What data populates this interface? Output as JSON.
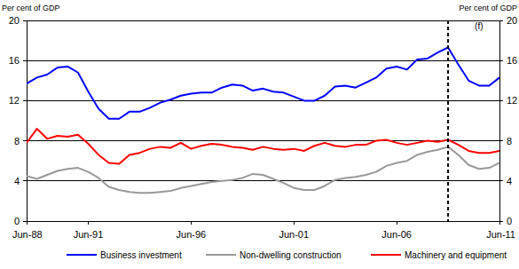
{
  "chart_data": {
    "type": "line",
    "y_label": "Per cent of GDP",
    "y2_label": "Per cent of GDP",
    "x": [
      1988.5,
      1989.0,
      1989.5,
      1990.0,
      1990.5,
      1991.0,
      1991.5,
      1992.0,
      1992.5,
      1993.0,
      1993.5,
      1994.0,
      1994.5,
      1995.0,
      1995.5,
      1996.0,
      1996.5,
      1997.0,
      1997.5,
      1998.0,
      1998.5,
      1999.0,
      1999.5,
      2000.0,
      2000.5,
      2001.0,
      2001.5,
      2002.0,
      2002.5,
      2003.0,
      2003.5,
      2004.0,
      2004.5,
      2005.0,
      2005.5,
      2006.0,
      2006.5,
      2007.0,
      2007.5,
      2008.0,
      2008.5,
      2009.0,
      2009.5,
      2010.0,
      2010.5,
      2011.0,
      2011.5
    ],
    "series": [
      {
        "name": "Business investment",
        "color": "#0000ff",
        "values": [
          13.7,
          14.3,
          14.6,
          15.3,
          15.4,
          14.8,
          12.9,
          11.2,
          10.2,
          10.2,
          10.9,
          10.9,
          11.3,
          11.8,
          12.1,
          12.5,
          12.7,
          12.8,
          12.8,
          13.3,
          13.6,
          13.5,
          13.0,
          13.2,
          12.9,
          12.8,
          12.4,
          12.0,
          12.0,
          12.5,
          13.4,
          13.5,
          13.3,
          13.8,
          14.3,
          15.2,
          15.4,
          15.1,
          16.1,
          16.2,
          16.8,
          17.3,
          15.6,
          14.0,
          13.5,
          13.5,
          14.3
        ]
      },
      {
        "name": "Non-dwelling construction",
        "color": "#999999",
        "values": [
          4.5,
          4.2,
          4.6,
          5.0,
          5.2,
          5.3,
          4.9,
          4.3,
          3.4,
          3.1,
          2.9,
          2.8,
          2.8,
          2.9,
          3.0,
          3.3,
          3.5,
          3.7,
          3.9,
          4.0,
          4.1,
          4.3,
          4.7,
          4.6,
          4.2,
          3.8,
          3.3,
          3.1,
          3.1,
          3.5,
          4.1,
          4.3,
          4.4,
          4.6,
          4.9,
          5.5,
          5.8,
          6.0,
          6.6,
          6.9,
          7.1,
          7.4,
          6.6,
          5.6,
          5.2,
          5.3,
          5.8
        ]
      },
      {
        "name": "Machinery and equipment",
        "color": "#ff0000",
        "values": [
          7.8,
          9.2,
          8.2,
          8.5,
          8.4,
          8.6,
          7.7,
          6.6,
          5.8,
          5.7,
          6.6,
          6.8,
          7.2,
          7.4,
          7.3,
          7.8,
          7.2,
          7.5,
          7.7,
          7.6,
          7.4,
          7.3,
          7.1,
          7.4,
          7.2,
          7.1,
          7.2,
          7.0,
          7.5,
          7.8,
          7.5,
          7.4,
          7.6,
          7.6,
          8.0,
          8.1,
          7.8,
          7.6,
          7.8,
          8.0,
          7.9,
          8.1,
          7.6,
          7.0,
          6.8,
          6.8,
          7.0
        ]
      }
    ],
    "xlim": [
      1988.5,
      2011.5
    ],
    "xticks": [
      {
        "value": 1988.5,
        "label": "Jun-88"
      },
      {
        "value": 1991.5,
        "label": "Jun-91"
      },
      {
        "value": 1996.5,
        "label": "Jun-96"
      },
      {
        "value": 2001.5,
        "label": "Jun-01"
      },
      {
        "value": 2006.5,
        "label": "Jun-06"
      },
      {
        "value": 2011.5,
        "label": "Jun-11"
      }
    ],
    "ylim": [
      0,
      20
    ],
    "yticks": [
      0,
      4,
      8,
      12,
      16,
      20
    ],
    "y2lim": [
      0,
      20
    ],
    "y2ticks": [
      0,
      4,
      8,
      12,
      16,
      20
    ],
    "annotations": [
      {
        "text": "(f)",
        "x": 2009.0,
        "line_style": "dashed"
      }
    ],
    "grid": true,
    "legend": "bottom"
  }
}
